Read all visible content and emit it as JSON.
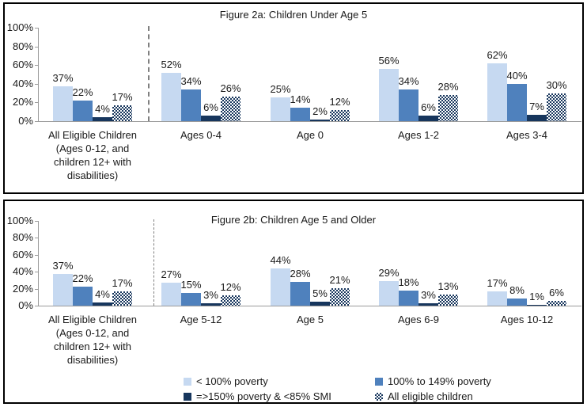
{
  "colors": {
    "series_light_blue": "#c6d9f1",
    "series_medium_blue": "#4f81bd",
    "series_dark_navy": "#17365d",
    "hatch_pattern": "navy-white-checker",
    "axis_gray": "#9b9b9b",
    "separator_gray": "#808080",
    "panel_border": "#000000"
  },
  "legend": {
    "items": [
      {
        "label": "< 100% poverty",
        "style": "light"
      },
      {
        "label": "100% to 149% poverty",
        "style": "medium"
      },
      {
        "label": "=>150% poverty & <85% SMI",
        "style": "dark"
      },
      {
        "label": "All eligible children",
        "style": "hatch"
      }
    ]
  },
  "chart_data": [
    {
      "type": "bar",
      "title": "Figure 2a: Children Under Age 5",
      "categories": [
        "All Eligible Children\n(Ages 0-12, and\nchildren 12+ with\ndisabilities)",
        "Ages 0-4",
        "Age 0",
        "Ages 1-2",
        "Ages 3-4"
      ],
      "series": [
        {
          "name": "< 100% poverty",
          "style": "light",
          "values": [
            37,
            52,
            25,
            56,
            62
          ]
        },
        {
          "name": "100% to 149% poverty",
          "style": "medium",
          "values": [
            22,
            34,
            14,
            34,
            40
          ]
        },
        {
          "name": "=>150% poverty & <85% SMI",
          "style": "dark",
          "values": [
            4,
            6,
            2,
            6,
            7
          ]
        },
        {
          "name": "All eligible children",
          "style": "hatch",
          "values": [
            17,
            26,
            12,
            28,
            30
          ]
        }
      ],
      "data_labels": [
        [
          "37%",
          "52%",
          "25%",
          "56%",
          "62%"
        ],
        [
          "22%",
          "34%",
          "14%",
          "34%",
          "40%"
        ],
        [
          "4%",
          "6%",
          "2%",
          "6%",
          "7%"
        ],
        [
          "17%",
          "26%",
          "12%",
          "28%",
          "30%"
        ]
      ],
      "ylim": [
        0,
        100
      ],
      "yticks": [
        "0%",
        "20%",
        "40%",
        "60%",
        "80%",
        "100%"
      ],
      "grid": false,
      "separator_after_category_index": 0,
      "xlabel": "",
      "ylabel": ""
    },
    {
      "type": "bar",
      "title": "Figure 2b: Children Age 5 and Older",
      "categories": [
        "All Eligible Children\n(Ages 0-12, and\nchildren 12+ with\ndisabilities)",
        "Age 5-12",
        "Age 5",
        "Ages 6-9",
        "Ages 10-12"
      ],
      "series": [
        {
          "name": "< 100% poverty",
          "style": "light",
          "values": [
            37,
            27,
            44,
            29,
            17
          ]
        },
        {
          "name": "100% to 149% poverty",
          "style": "medium",
          "values": [
            22,
            15,
            28,
            18,
            8
          ]
        },
        {
          "name": "=>150% poverty & <85% SMI",
          "style": "dark",
          "values": [
            4,
            3,
            5,
            3,
            1
          ]
        },
        {
          "name": "All eligible children",
          "style": "hatch",
          "values": [
            17,
            12,
            21,
            13,
            6
          ]
        }
      ],
      "data_labels": [
        [
          "37%",
          "27%",
          "44%",
          "29%",
          "17%"
        ],
        [
          "22%",
          "15%",
          "28%",
          "18%",
          "8%"
        ],
        [
          "4%",
          "3%",
          "5%",
          "3%",
          "1%"
        ],
        [
          "17%",
          "12%",
          "21%",
          "13%",
          "6%"
        ]
      ],
      "ylim": [
        0,
        100
      ],
      "yticks": [
        "0%",
        "20%",
        "40%",
        "60%",
        "80%",
        "100%"
      ],
      "grid": false,
      "separator_after_category_index": 0,
      "xlabel": "",
      "ylabel": ""
    }
  ]
}
